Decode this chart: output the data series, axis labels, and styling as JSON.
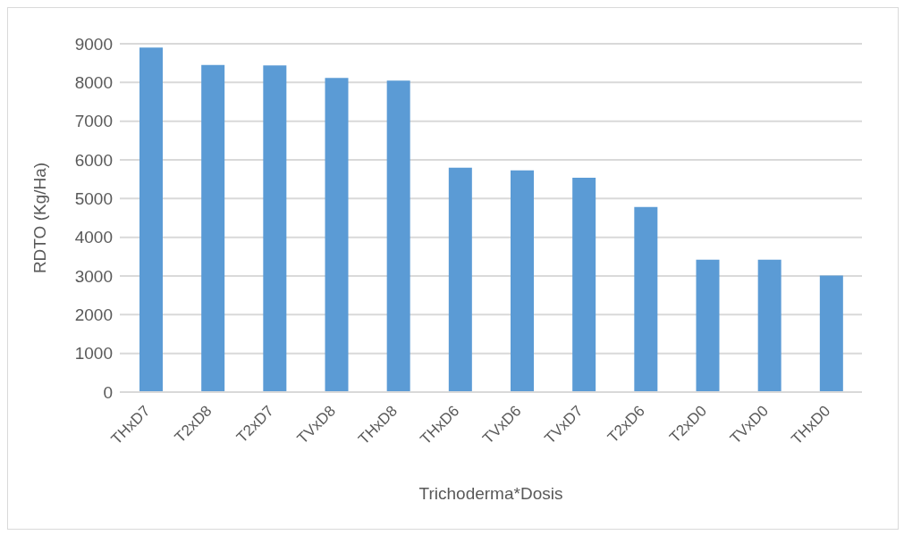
{
  "chart_data": {
    "type": "bar",
    "xlabel": "Trichoderma*Dosis",
    "ylabel": "RDTO (Kg/Ha)",
    "categories": [
      "THxD7",
      "T2xD8",
      "T2xD7",
      "TVxD8",
      "THxD8",
      "THxD6",
      "TVxD6",
      "TVxD7",
      "T2xD6",
      "T2xD0",
      "TVxD0",
      "THxD0"
    ],
    "values": [
      8900,
      8450,
      8440,
      8120,
      8050,
      5800,
      5730,
      5540,
      4780,
      3420,
      3420,
      3010
    ],
    "color": "#5b9bd5",
    "ylim": [
      0,
      9000
    ],
    "yticks": [
      0,
      1000,
      2000,
      3000,
      4000,
      5000,
      6000,
      7000,
      8000,
      9000
    ],
    "grid": "y"
  }
}
